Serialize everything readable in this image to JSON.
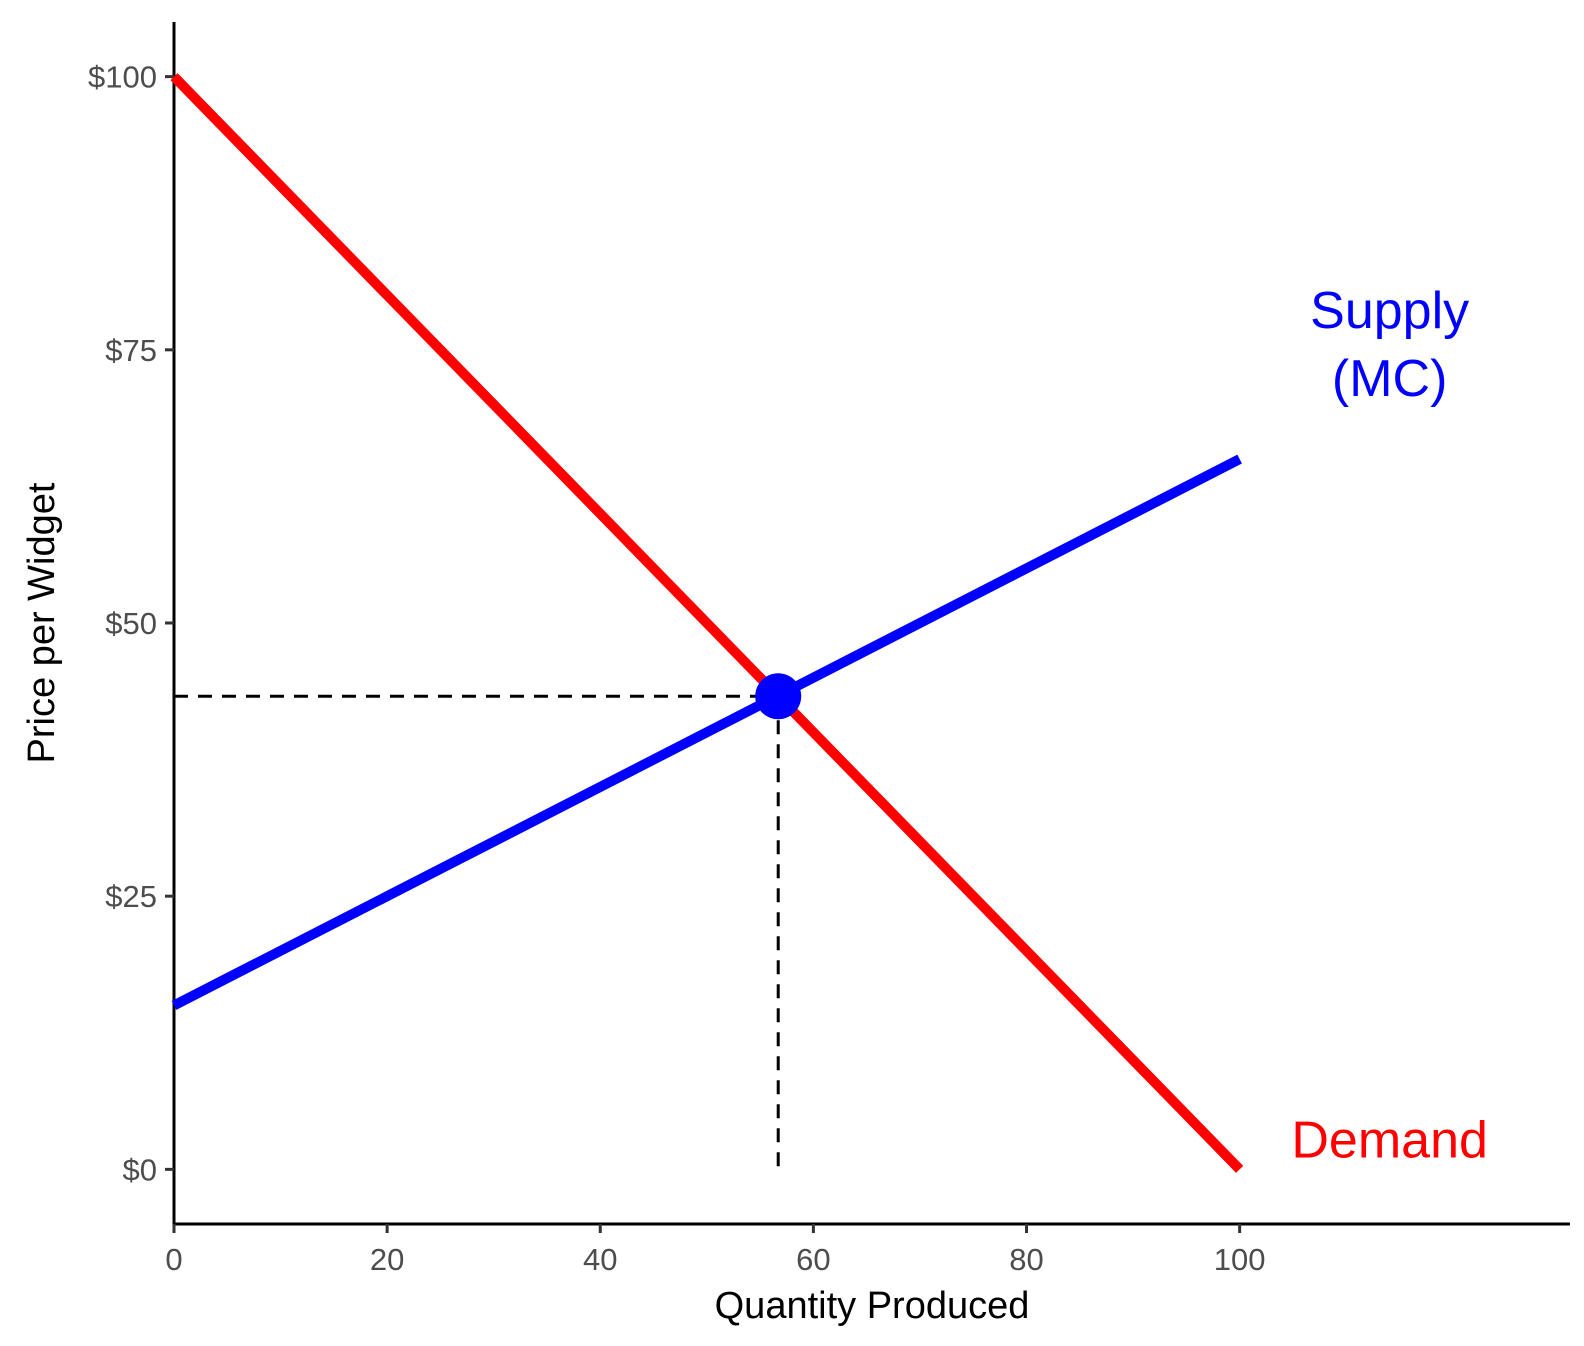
{
  "chart_data": {
    "type": "line",
    "xlabel": "Quantity Produced",
    "ylabel": "Price per Widget",
    "xlim": [
      0,
      131
    ],
    "ylim": [
      -5,
      105
    ],
    "x_ticks": [
      0,
      20,
      40,
      60,
      80,
      100
    ],
    "x_tick_labels": [
      "0",
      "20",
      "40",
      "60",
      "80",
      "100"
    ],
    "y_ticks": [
      0,
      25,
      50,
      75,
      100
    ],
    "y_tick_labels": [
      "$0",
      "$25",
      "$50",
      "$75",
      "$100"
    ],
    "grid": false,
    "legend": "none",
    "series": [
      {
        "name": "Demand",
        "color": "#ff0000",
        "x": [
          0,
          100
        ],
        "y": [
          100,
          0
        ]
      },
      {
        "name": "Supply (MC)",
        "label_lines": [
          "Supply",
          "(MC)"
        ],
        "color": "#0000ff",
        "x": [
          0,
          100
        ],
        "y": [
          15,
          65
        ]
      }
    ],
    "equilibrium": {
      "x": 56.7,
      "y": 43.3,
      "color": "#0000ff"
    }
  }
}
